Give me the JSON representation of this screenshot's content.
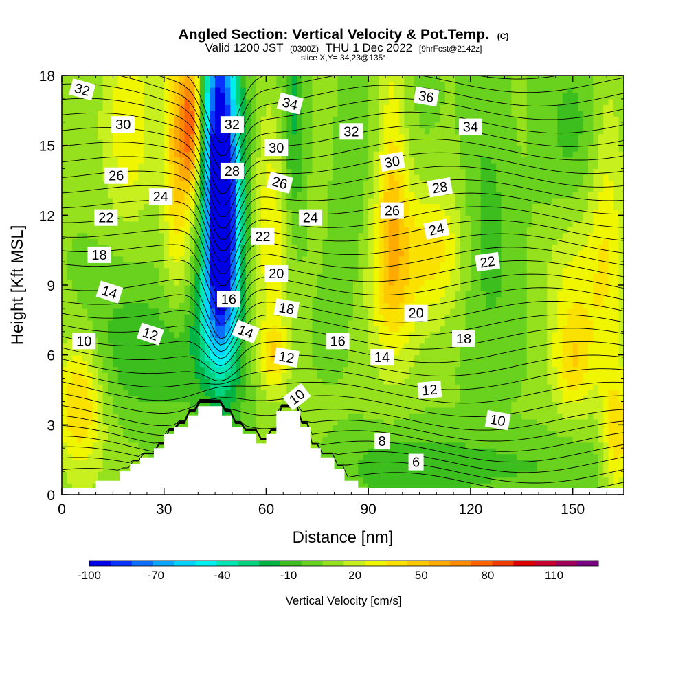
{
  "chart_data": {
    "type": "heatmap",
    "title": "Angled Section: Vertical Velocity & Pot.Temp.",
    "title_suffix": "(C)",
    "subtitle_parts": [
      "Valid 1200 JST",
      "(0300Z)",
      "THU 1 Dec 2022",
      "[9hrFcst@2142z]"
    ],
    "slice_note": "slice X,Y= 34,23@135°",
    "xlabel": "Distance [nm]",
    "ylabel": "Height [Kft MSL]",
    "xlim": [
      0,
      165
    ],
    "ylim": [
      0,
      18
    ],
    "x_ticks": [
      "0",
      "30",
      "60",
      "90",
      "120",
      "150"
    ],
    "x_tick_values": [
      0,
      30,
      60,
      90,
      120,
      150
    ],
    "y_ticks": [
      "0",
      "3",
      "6",
      "9",
      "12",
      "15",
      "18"
    ],
    "y_tick_values": [
      0,
      3,
      6,
      9,
      12,
      15,
      18
    ],
    "colorbar": {
      "title": "Vertical Velocity [cm/s]",
      "labels": [
        "-100",
        "-70",
        "-40",
        "-10",
        "20",
        "50",
        "80",
        "110"
      ],
      "label_values": [
        -100,
        -70,
        -40,
        -10,
        20,
        50,
        80,
        110
      ],
      "range": [
        -100,
        130
      ],
      "colors": [
        "#0000e6",
        "#0a32ff",
        "#0a6eff",
        "#0aa5ff",
        "#05d2ff",
        "#00f0f0",
        "#00e6b4",
        "#00d27d",
        "#00b446",
        "#3cbe1e",
        "#69d21e",
        "#96e11e",
        "#c8f01e",
        "#f0f500",
        "#fae100",
        "#ffc800",
        "#ffaa00",
        "#ff8c00",
        "#ff6400",
        "#f03c00",
        "#dc0000",
        "#c80032",
        "#a0005a",
        "#780082"
      ]
    },
    "terrain": {
      "x": [
        0,
        10,
        10,
        17,
        17,
        20,
        20,
        23,
        23,
        27,
        27,
        30,
        30,
        33,
        33,
        37,
        37,
        40,
        40,
        43,
        43,
        47,
        47,
        50,
        50,
        53,
        53,
        57,
        57,
        60,
        60,
        63,
        63,
        66,
        66,
        70,
        70,
        73,
        73,
        76,
        76,
        80,
        80,
        83,
        83,
        87,
        87,
        90,
        90,
        165
      ],
      "height": [
        0,
        0,
        0.6,
        0.6,
        1,
        1,
        1.3,
        1.3,
        1.6,
        1.6,
        2,
        2,
        2.6,
        2.6,
        2.9,
        2.9,
        3.4,
        3.4,
        3.8,
        3.8,
        3.8,
        3.8,
        3.4,
        3.4,
        2.9,
        2.9,
        2.6,
        2.6,
        2.2,
        2.2,
        2.6,
        2.6,
        3.6,
        3.6,
        3.6,
        3.6,
        2.9,
        2.9,
        2.0,
        2.0,
        1.6,
        1.6,
        1.1,
        1.1,
        0.6,
        0.6,
        0.3,
        0.3,
        0,
        0
      ]
    },
    "features": [
      {
        "x": 46,
        "y": 15,
        "sx": 3,
        "sy": 5,
        "v": -85
      },
      {
        "x": 47,
        "y": 11,
        "sx": 3,
        "sy": 3,
        "v": -55
      },
      {
        "x": 50,
        "y": 12,
        "sx": 4,
        "sy": 5,
        "v": -40
      },
      {
        "x": 68,
        "y": 15,
        "sx": 3,
        "sy": 4,
        "v": -35
      },
      {
        "x": 34,
        "y": 15,
        "sx": 3,
        "sy": 4,
        "v": 45
      },
      {
        "x": 38,
        "y": 16,
        "sx": 2,
        "sy": 2,
        "v": 60
      },
      {
        "x": 20,
        "y": 16,
        "sx": 5,
        "sy": 3,
        "v": 25
      },
      {
        "x": 63,
        "y": 11,
        "sx": 6,
        "sy": 4,
        "v": 30
      },
      {
        "x": 97,
        "y": 10,
        "sx": 5,
        "sy": 3,
        "v": 35
      },
      {
        "x": 110,
        "y": 10.5,
        "sx": 6,
        "sy": 2,
        "v": 30
      },
      {
        "x": 97,
        "y": 15,
        "sx": 3,
        "sy": 4,
        "v": 25
      },
      {
        "x": 150,
        "y": 9,
        "sx": 6,
        "sy": 3,
        "v": 20
      },
      {
        "x": 160,
        "y": 12,
        "sx": 4,
        "sy": 5,
        "v": 25
      },
      {
        "x": 5,
        "y": 4,
        "sx": 5,
        "sy": 2,
        "v": 40
      },
      {
        "x": 150,
        "y": 5.5,
        "sx": 4,
        "sy": 1.5,
        "v": 25
      },
      {
        "x": 163,
        "y": 2.5,
        "sx": 3,
        "sy": 2,
        "v": 35
      },
      {
        "x": 62,
        "y": 6,
        "sx": 3,
        "sy": 1,
        "v": 30
      },
      {
        "x": 115,
        "y": 1.2,
        "sx": 25,
        "sy": 1,
        "v": -18
      },
      {
        "x": 30,
        "y": 6,
        "sx": 15,
        "sy": 2,
        "v": -18
      },
      {
        "x": 43,
        "y": 8,
        "sx": 4,
        "sy": 2,
        "v": -25
      },
      {
        "x": 125,
        "y": 13,
        "sx": 5,
        "sy": 4,
        "v": -15
      },
      {
        "x": 150,
        "y": 15,
        "sx": 7,
        "sy": 3,
        "v": -12
      },
      {
        "x": 85,
        "y": 13,
        "sx": 4,
        "sy": 3,
        "v": -10
      }
    ],
    "contour_levels": [
      4,
      5,
      6,
      7,
      8,
      9,
      10,
      11,
      12,
      13,
      14,
      15,
      16,
      17,
      18,
      19,
      20,
      21,
      22,
      23,
      24,
      25,
      26,
      27,
      28,
      29,
      30,
      31,
      32,
      33,
      34,
      35,
      36
    ],
    "contour_labels": [
      {
        "text": "32",
        "x": 6,
        "y": 17.4,
        "angle": 15
      },
      {
        "text": "30",
        "x": 18,
        "y": 15.9,
        "angle": 0
      },
      {
        "text": "26",
        "x": 16,
        "y": 13.7,
        "angle": 0
      },
      {
        "text": "24",
        "x": 29,
        "y": 12.8,
        "angle": 0
      },
      {
        "text": "22",
        "x": 13,
        "y": 11.9,
        "angle": 0
      },
      {
        "text": "18",
        "x": 11,
        "y": 10.3,
        "angle": 0
      },
      {
        "text": "14",
        "x": 14,
        "y": 8.7,
        "angle": 18
      },
      {
        "text": "10",
        "x": 6.5,
        "y": 6.6,
        "angle": 0
      },
      {
        "text": "12",
        "x": 26,
        "y": 6.9,
        "angle": 18
      },
      {
        "text": "34",
        "x": 67,
        "y": 16.8,
        "angle": 15
      },
      {
        "text": "32",
        "x": 50,
        "y": 15.9,
        "angle": 0
      },
      {
        "text": "30",
        "x": 63,
        "y": 14.9,
        "angle": 0
      },
      {
        "text": "28",
        "x": 50,
        "y": 13.9,
        "angle": 0
      },
      {
        "text": "26",
        "x": 64,
        "y": 13.4,
        "angle": 15
      },
      {
        "text": "24",
        "x": 73,
        "y": 11.9,
        "angle": 0
      },
      {
        "text": "22",
        "x": 59,
        "y": 11.1,
        "angle": 0
      },
      {
        "text": "20",
        "x": 63,
        "y": 9.5,
        "angle": 0
      },
      {
        "text": "16",
        "x": 49,
        "y": 8.4,
        "angle": 0
      },
      {
        "text": "18",
        "x": 66,
        "y": 8.0,
        "angle": 10
      },
      {
        "text": "14",
        "x": 54,
        "y": 7.0,
        "angle": 22
      },
      {
        "text": "12",
        "x": 66,
        "y": 5.9,
        "angle": 10
      },
      {
        "text": "10",
        "x": 69,
        "y": 4.2,
        "angle": -38
      },
      {
        "text": "16",
        "x": 81,
        "y": 6.6,
        "angle": 0
      },
      {
        "text": "14",
        "x": 94,
        "y": 5.9,
        "angle": 0
      },
      {
        "text": "36",
        "x": 107,
        "y": 17.1,
        "angle": 10
      },
      {
        "text": "32",
        "x": 85,
        "y": 15.6,
        "angle": 0
      },
      {
        "text": "30",
        "x": 97,
        "y": 14.3,
        "angle": -10
      },
      {
        "text": "34",
        "x": 120,
        "y": 15.8,
        "angle": 0
      },
      {
        "text": "28",
        "x": 111,
        "y": 13.2,
        "angle": -10
      },
      {
        "text": "26",
        "x": 97,
        "y": 12.2,
        "angle": 0
      },
      {
        "text": "24",
        "x": 110,
        "y": 11.4,
        "angle": -12
      },
      {
        "text": "22",
        "x": 125,
        "y": 10.0,
        "angle": -8
      },
      {
        "text": "20",
        "x": 104,
        "y": 7.8,
        "angle": 0
      },
      {
        "text": "18",
        "x": 118,
        "y": 6.7,
        "angle": 0
      },
      {
        "text": "12",
        "x": 108,
        "y": 4.5,
        "angle": -5
      },
      {
        "text": "10",
        "x": 128,
        "y": 3.2,
        "angle": 10
      },
      {
        "text": "8",
        "x": 94,
        "y": 2.3,
        "angle": 0
      },
      {
        "text": "6",
        "x": 104,
        "y": 1.4,
        "angle": 0
      }
    ]
  }
}
